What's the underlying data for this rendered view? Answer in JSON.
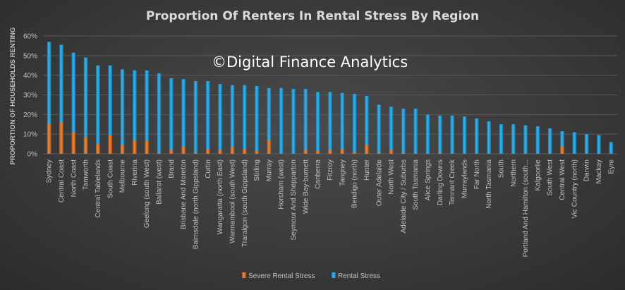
{
  "chart_data": {
    "type": "bar",
    "title": "Proportion Of Renters In Rental Stress By Region",
    "watermark": "©Digital Finance Analytics",
    "xlabel": "",
    "ylabel": "PROPORTION OF HOUSEHOLDS RENTING",
    "ylim": [
      0,
      60
    ],
    "yticks": [
      "0%",
      "10%",
      "20%",
      "30%",
      "40%",
      "50%",
      "60%"
    ],
    "grid": true,
    "legend_position": "bottom",
    "categories": [
      "Sydney",
      "Central Coast",
      "North Coast",
      "Tamworth",
      "Central Tablelands",
      "South Coast",
      "Melbourne",
      "Riverina",
      "Geelong (south West)",
      "Ballarat (west)",
      "Brand",
      "Brisbane And Moreton",
      "Bairnsdale (north Gippsland)",
      "Curtin",
      "Wangaratta (north East)",
      "Warrnambool (south West)",
      "Traralgon (south Gippsland)",
      "Stirling",
      "Murray",
      "Horsham (west)",
      "Seymour And Shepparton",
      "Wide Bay-burnett",
      "Canberra",
      "Fitzroy",
      "Tangney",
      "Bendigo (north)",
      "Hunter",
      "Outer Adelaide",
      "North West",
      "Adelaide City / Suburbs",
      "South Tasmania",
      "Alice Springs",
      "Darling Downs",
      "Tennant Creek",
      "Murraylands",
      "Far North",
      "North Tasmania",
      "South",
      "Northern",
      "Portland And Hamilton (south...",
      "Kalgoorlie",
      "South West",
      "Central West",
      "Vic Country (north)",
      "Darwin",
      "Mackay",
      "Eyre"
    ],
    "series": [
      {
        "name": "Severe Rental Stress",
        "color": "#e07020",
        "values": [
          15.5,
          16,
          11,
          8.5,
          5,
          9.5,
          4.5,
          7,
          6.5,
          0.5,
          2,
          3.5,
          0.5,
          2.5,
          2,
          3.5,
          2.5,
          1.5,
          7,
          0,
          0,
          2,
          1.5,
          2,
          2.5,
          1,
          4.5,
          0.5,
          2,
          0.5,
          0,
          0,
          0.5,
          0,
          0,
          0,
          0,
          0,
          0,
          0,
          0,
          0,
          4,
          0,
          0,
          0,
          0
        ]
      },
      {
        "name": "Rental Stress",
        "color": "#1f9bd6",
        "values": [
          57,
          55.5,
          51.5,
          49,
          45,
          45,
          43,
          42.5,
          42.5,
          41,
          38.5,
          38,
          37,
          37,
          35.5,
          35,
          35,
          34.5,
          33.5,
          33.5,
          33,
          33,
          31.5,
          31.5,
          31,
          30.5,
          29.5,
          25,
          24,
          23,
          23,
          20,
          19.5,
          19.5,
          19,
          18,
          16.5,
          15,
          15,
          14.5,
          14,
          13,
          11.5,
          11,
          10,
          9.5,
          6
        ]
      }
    ]
  }
}
